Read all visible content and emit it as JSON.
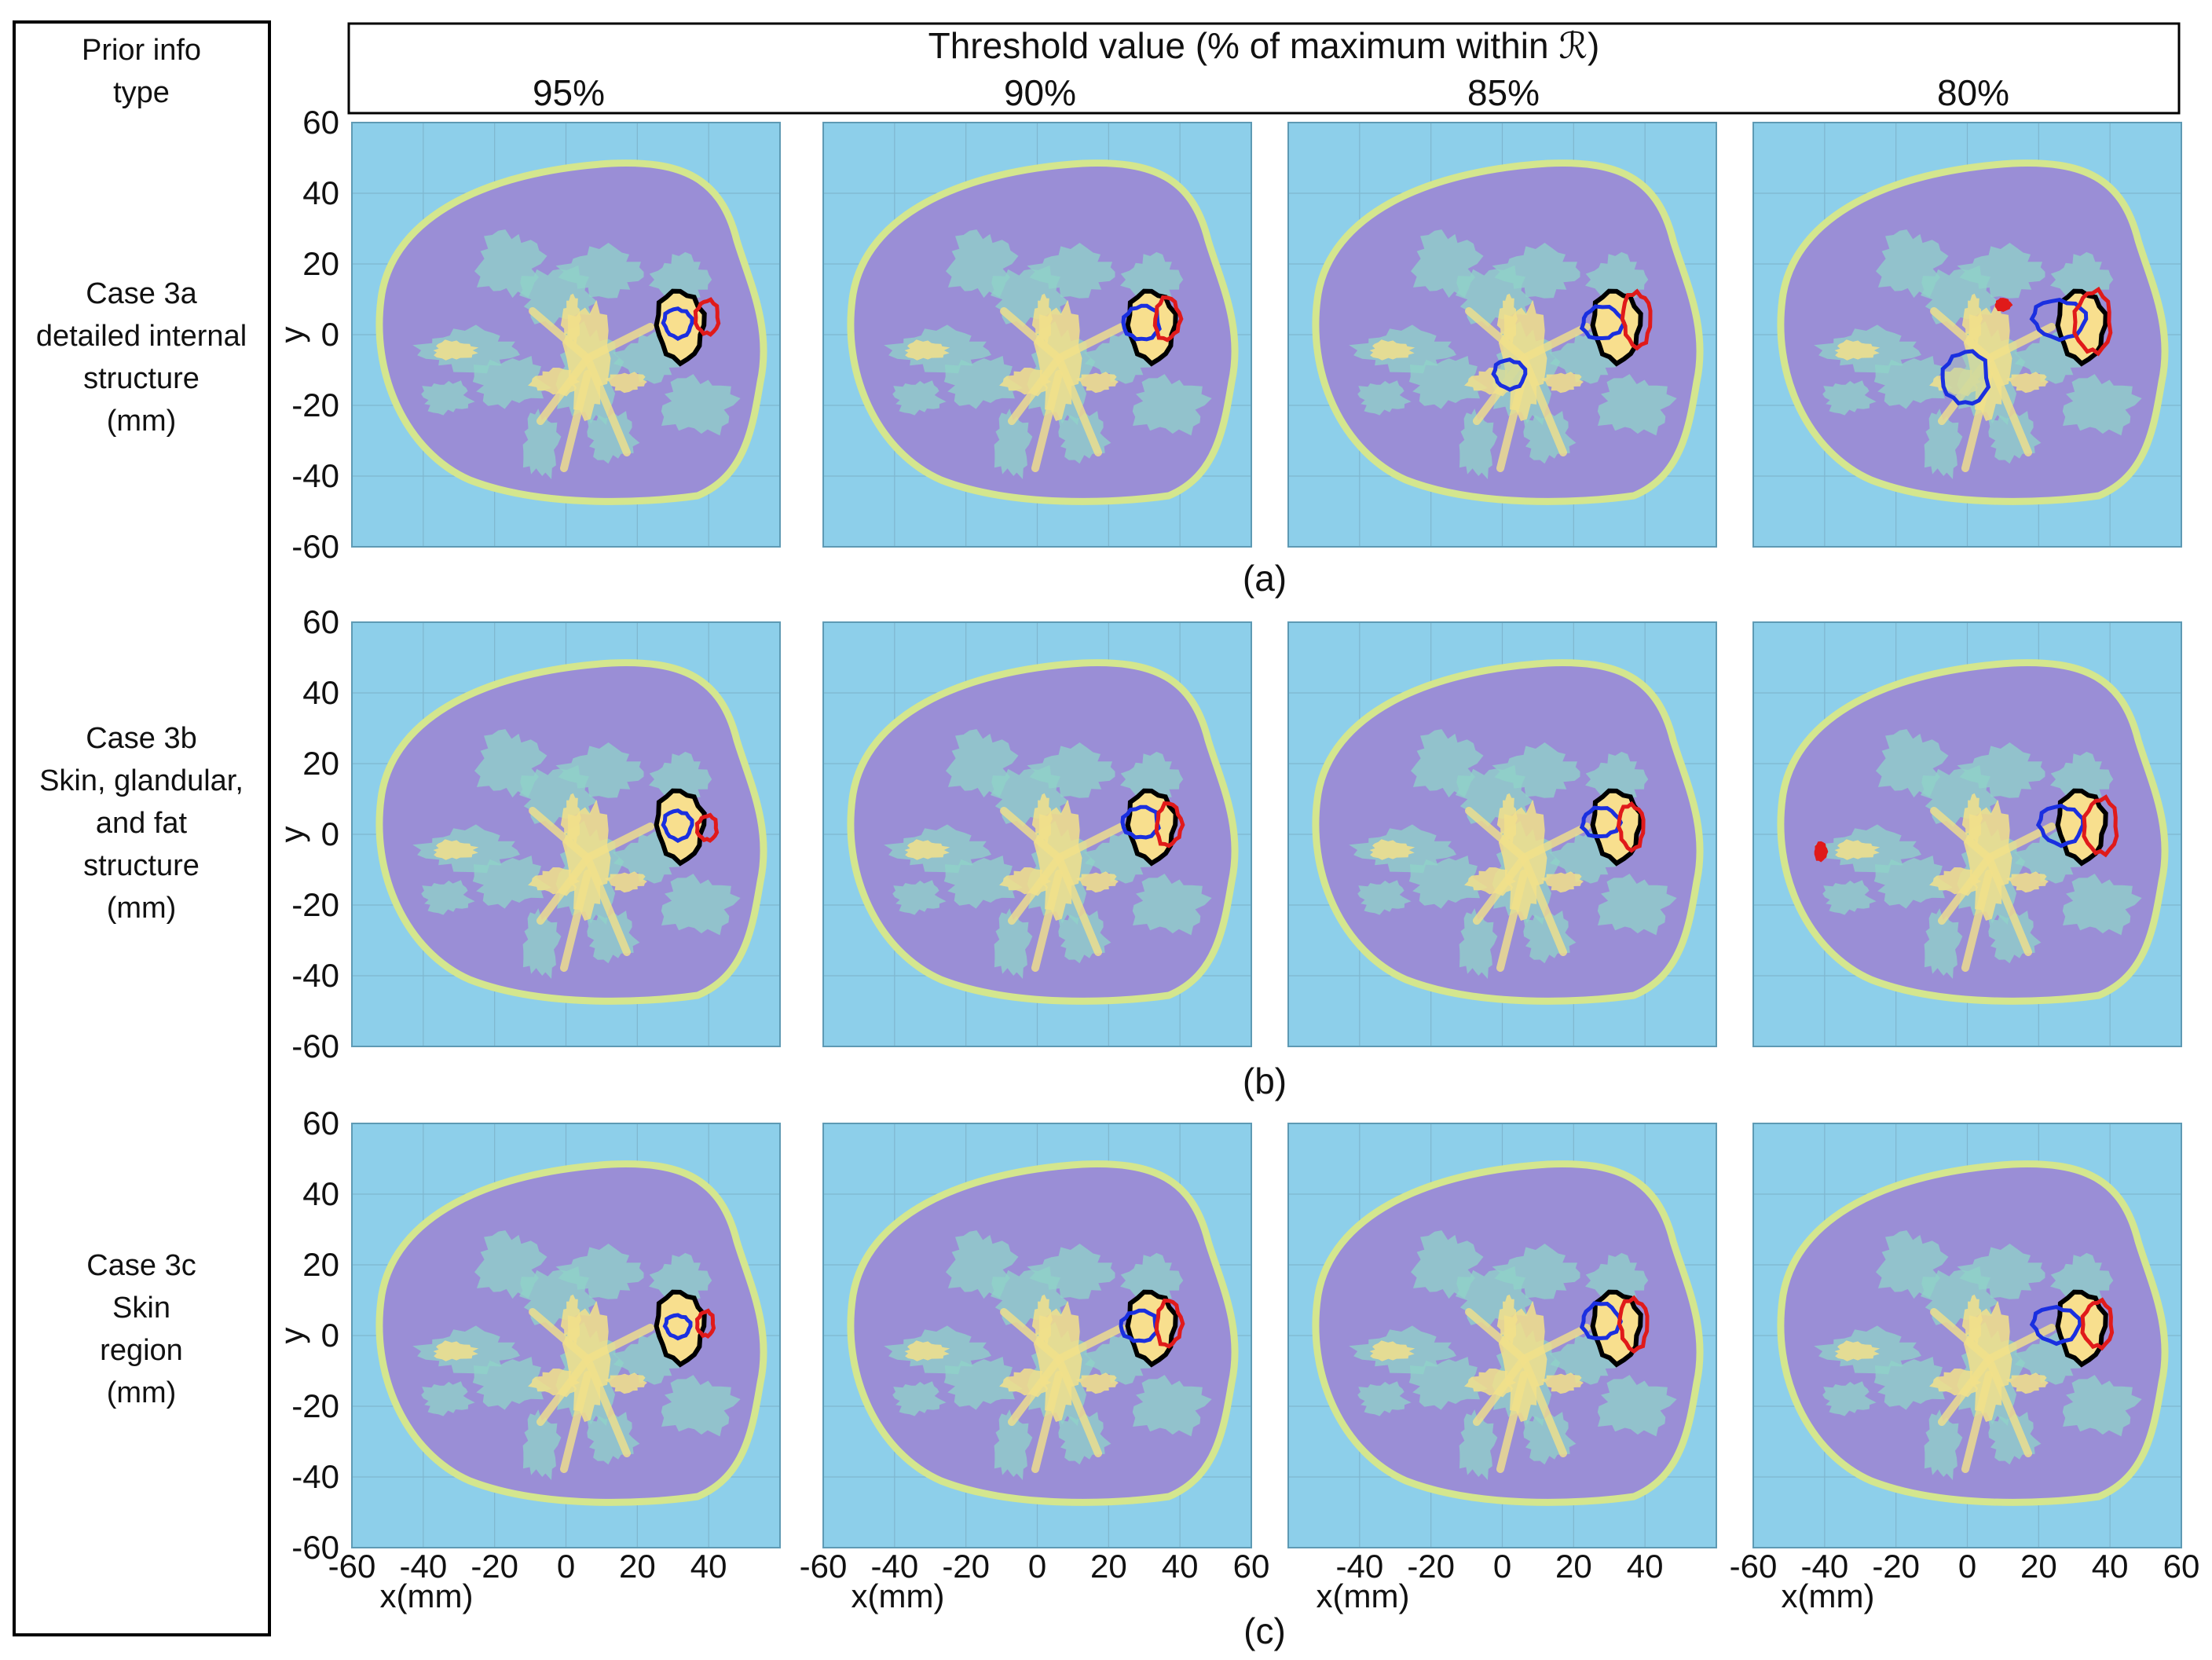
{
  "figure": {
    "left_panel": {
      "header": [
        "Prior info",
        "type"
      ],
      "rows": [
        [
          "Case 3a",
          "detailed internal",
          "structure",
          "(mm)"
        ],
        [
          "Case 3b",
          "Skin, glandular,",
          "and fat",
          "structure",
          "(mm)"
        ],
        [
          "Case 3c",
          "Skin",
          "region",
          "(mm)"
        ]
      ]
    },
    "threshold_header": {
      "title": "Threshold value (% of maximum within ℛ)",
      "columns": [
        "95%",
        "90%",
        "85%",
        "80%"
      ]
    },
    "row_labels": [
      "(a)",
      "(b)",
      "(c)"
    ],
    "axes": {
      "ylabel": "y",
      "xlabel": "x(mm)",
      "y_ticks": [
        "60",
        "40",
        "20",
        "0",
        "-20",
        "-40",
        "-60"
      ],
      "x_ticks": [
        "-60",
        "-40",
        "-20",
        "0",
        "20",
        "40",
        "60"
      ],
      "x_ticks_first_col": [
        "-60",
        "-40",
        "-20",
        "0",
        "20",
        "40"
      ],
      "x_ticks_third_col": [
        "-40",
        "-20",
        "0",
        "20",
        "40"
      ],
      "x_ticks_fourth_col": [
        "-60",
        "-40",
        "-20",
        "0",
        "20",
        "40",
        "60"
      ]
    },
    "colors": {
      "background": "#8dcfea",
      "breast": "#9a8ed6",
      "skin": "#d4e68e",
      "fibro_light": "#8fd3c8",
      "fibro_dense": "#f2e18a",
      "tumor_fill": "#f8df8e",
      "true_contour": "#000000",
      "recon_blue": "#1a2fe0",
      "recon_red": "#e01a1a"
    }
  }
}
